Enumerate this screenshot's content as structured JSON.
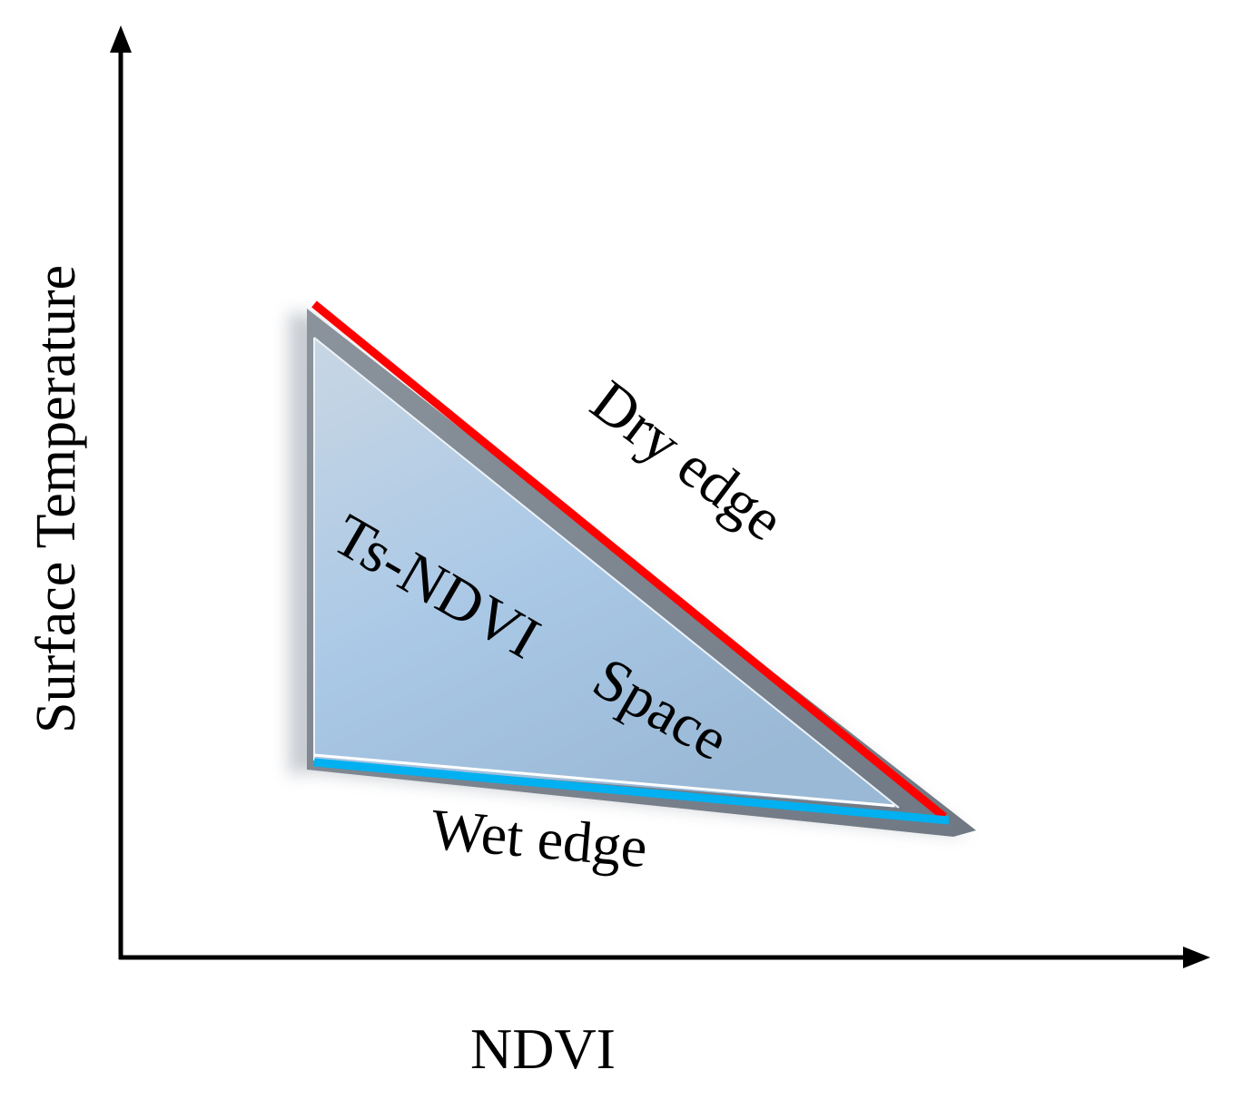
{
  "diagram": {
    "x_axis_label": "NDVI",
    "y_axis_label": "Surface Temperature",
    "space_label_line1": "Ts-NDVI",
    "space_label_line2": "Space",
    "dry_edge_label": "Dry edge",
    "wet_edge_label": "Wet edge"
  },
  "colors": {
    "dry_edge": "#ff0000",
    "wet_edge": "#00b0f0",
    "space_fill_top": "#c2d2e2",
    "space_fill_bottom": "#9fc3e3",
    "bevel": "#7e8792",
    "axis": "#000000"
  }
}
